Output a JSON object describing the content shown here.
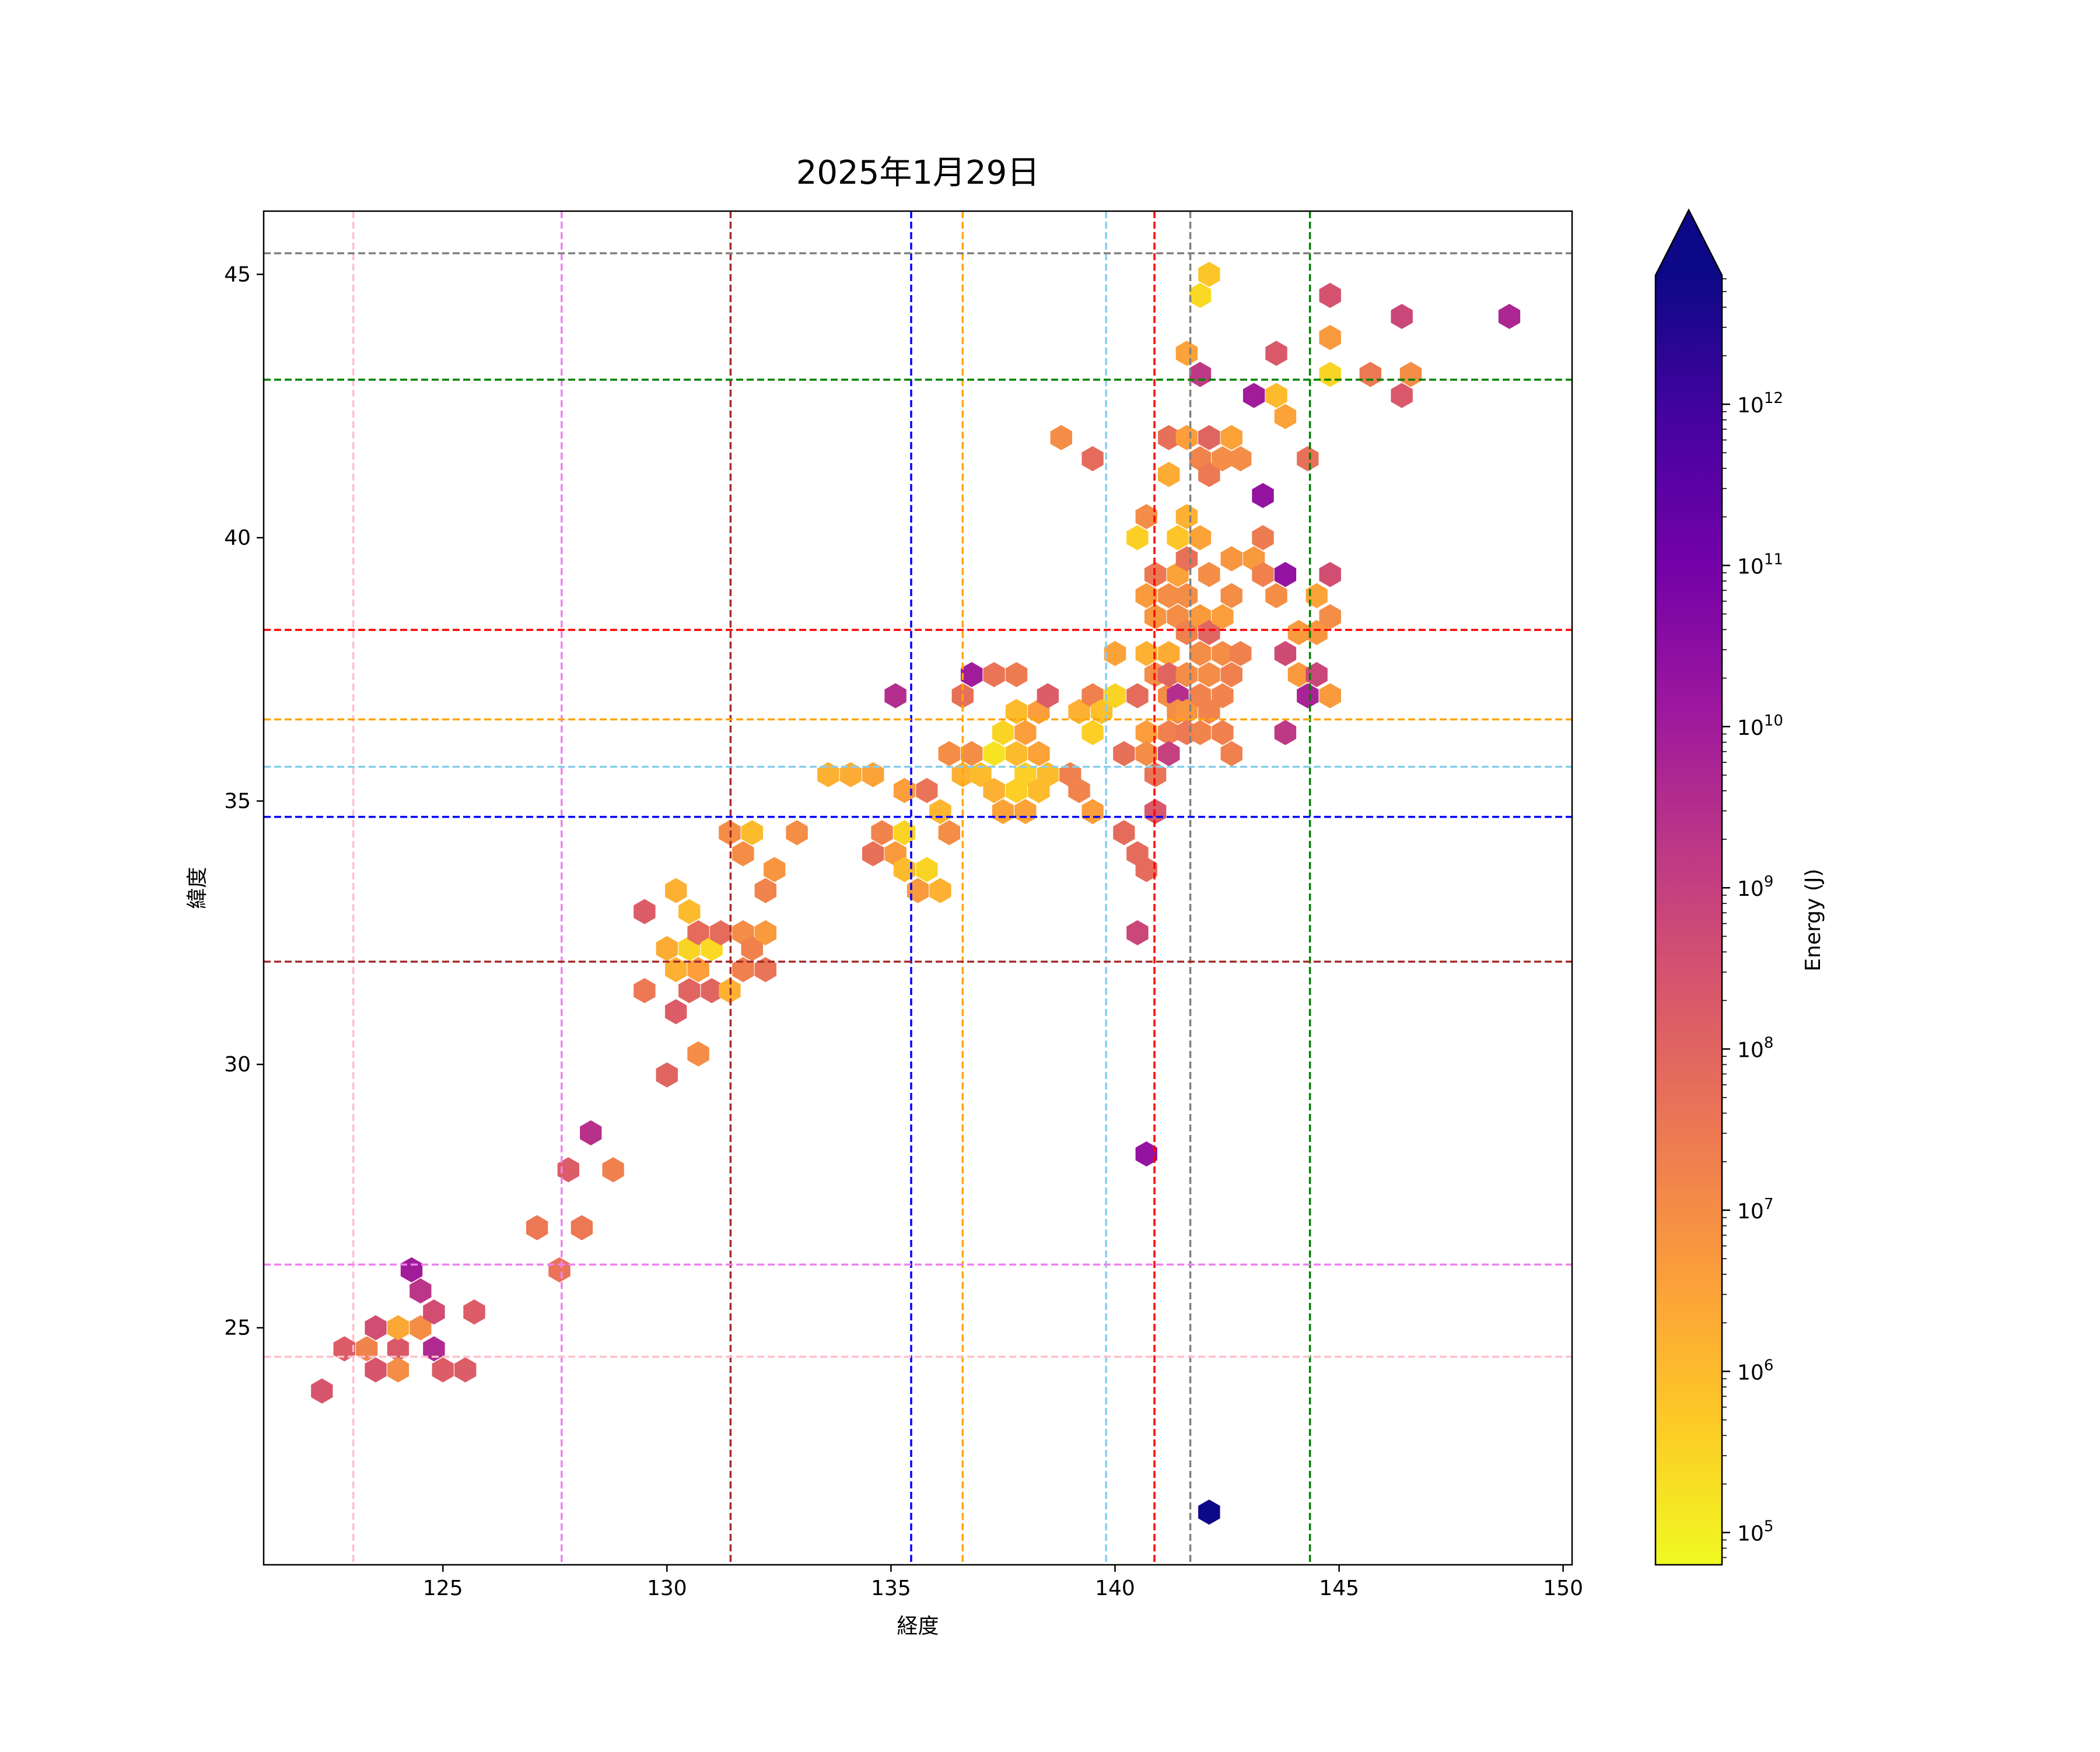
{
  "chart_data": {
    "type": "hexbin",
    "title": "2025年1月29日",
    "xlabel": "経度",
    "ylabel": "緯度",
    "xlim": [
      121,
      150.2
    ],
    "ylim": [
      20.5,
      46.2
    ],
    "x_ticks": [
      125,
      130,
      135,
      140,
      145,
      150
    ],
    "y_ticks": [
      25,
      30,
      35,
      40,
      45
    ],
    "grid": false,
    "colorbar": {
      "label": "Energy (J)",
      "scale": "log",
      "range_exp": [
        4.8,
        12.8
      ],
      "extend": "max",
      "tick_exps": [
        5,
        6,
        7,
        8,
        9,
        10,
        11,
        12
      ],
      "tick_labels": [
        "10",
        "10",
        "10",
        "10",
        "10",
        "10",
        "10",
        "10"
      ],
      "tick_sup": [
        "5",
        "6",
        "7",
        "8",
        "9",
        "10",
        "11",
        "12"
      ],
      "colormap_stops": [
        "#f0f921",
        "#fdca26",
        "#fb9f3a",
        "#ed7953",
        "#d8576b",
        "#bd3786",
        "#9c179e",
        "#7201a8",
        "#46039f",
        "#0d0887"
      ]
    },
    "reference_lines_vertical": [
      {
        "x": 123.0,
        "color": "#ffc0cb"
      },
      {
        "x": 127.65,
        "color": "#ee82ee"
      },
      {
        "x": 131.42,
        "color": "#a52a2a"
      },
      {
        "x": 135.45,
        "color": "#0000ff"
      },
      {
        "x": 136.6,
        "color": "#ffa500"
      },
      {
        "x": 139.8,
        "color": "#87ceeb"
      },
      {
        "x": 140.88,
        "color": "#ff0000"
      },
      {
        "x": 141.68,
        "color": "#808080"
      },
      {
        "x": 144.35,
        "color": "#008000"
      }
    ],
    "reference_lines_horizontal": [
      {
        "y": 45.4,
        "color": "#808080"
      },
      {
        "y": 43.0,
        "color": "#008000"
      },
      {
        "y": 38.25,
        "color": "#ff0000"
      },
      {
        "y": 36.55,
        "color": "#ffa500"
      },
      {
        "y": 35.65,
        "color": "#87ceeb"
      },
      {
        "y": 34.7,
        "color": "#0000ff"
      },
      {
        "y": 31.95,
        "color": "#a52a2a"
      },
      {
        "y": 26.2,
        "color": "#ee82ee"
      },
      {
        "y": 24.45,
        "color": "#ffc0cb"
      }
    ],
    "points": [
      [
        122.3,
        23.8,
        8.4
      ],
      [
        122.8,
        24.6,
        8.2
      ],
      [
        123.3,
        24.6,
        7.2
      ],
      [
        123.5,
        25.0,
        8.6
      ],
      [
        123.5,
        24.2,
        8.4
      ],
      [
        124.0,
        24.6,
        8.3
      ],
      [
        124.0,
        25.0,
        6.4
      ],
      [
        124.0,
        24.2,
        7.0
      ],
      [
        124.3,
        26.1,
        10.0
      ],
      [
        124.5,
        25.7,
        9.3
      ],
      [
        124.5,
        25.0,
        7.0
      ],
      [
        124.8,
        25.3,
        8.6
      ],
      [
        124.8,
        24.6,
        9.6
      ],
      [
        125.0,
        24.2,
        8.2
      ],
      [
        125.5,
        24.2,
        8.2
      ],
      [
        125.7,
        25.3,
        8.2
      ],
      [
        127.1,
        26.9,
        7.5
      ],
      [
        127.6,
        26.1,
        7.6
      ],
      [
        127.8,
        28.0,
        8.2
      ],
      [
        128.1,
        26.9,
        7.5
      ],
      [
        128.3,
        28.7,
        9.4
      ],
      [
        128.8,
        28.0,
        7.3
      ],
      [
        129.5,
        32.9,
        8.2
      ],
      [
        129.5,
        31.4,
        7.5
      ],
      [
        130.0,
        32.2,
        6.3
      ],
      [
        130.0,
        29.8,
        8.0
      ],
      [
        130.2,
        33.3,
        6.2
      ],
      [
        130.2,
        31.8,
        6.2
      ],
      [
        130.2,
        31.0,
        8.2
      ],
      [
        130.5,
        32.9,
        6.0
      ],
      [
        130.5,
        32.2,
        5.5
      ],
      [
        130.5,
        31.4,
        8.0
      ],
      [
        130.7,
        32.5,
        7.8
      ],
      [
        130.7,
        31.8,
        6.6
      ],
      [
        130.7,
        30.2,
        7.0
      ],
      [
        131.0,
        32.2,
        5.4
      ],
      [
        131.0,
        31.4,
        8.0
      ],
      [
        131.2,
        32.5,
        7.8
      ],
      [
        131.4,
        31.4,
        6.2
      ],
      [
        131.4,
        34.4,
        7.0
      ],
      [
        131.7,
        34.0,
        7.0
      ],
      [
        131.7,
        32.5,
        7.0
      ],
      [
        131.7,
        31.8,
        7.3
      ],
      [
        131.9,
        34.4,
        6.0
      ],
      [
        131.9,
        32.2,
        7.3
      ],
      [
        132.2,
        33.3,
        7.2
      ],
      [
        132.2,
        32.5,
        6.7
      ],
      [
        132.2,
        31.8,
        7.6
      ],
      [
        132.4,
        33.7,
        6.8
      ],
      [
        132.9,
        34.4,
        7.0
      ],
      [
        133.6,
        35.5,
        6.2
      ],
      [
        134.1,
        35.5,
        6.3
      ],
      [
        134.6,
        35.5,
        6.5
      ],
      [
        134.6,
        34.0,
        7.7
      ],
      [
        134.8,
        34.4,
        7.2
      ],
      [
        135.1,
        37.0,
        9.5
      ],
      [
        135.1,
        34.0,
        6.7
      ],
      [
        135.3,
        35.2,
        6.6
      ],
      [
        135.3,
        34.4,
        5.5
      ],
      [
        135.3,
        33.7,
        6.0
      ],
      [
        135.6,
        33.3,
        6.7
      ],
      [
        135.8,
        35.2,
        7.6
      ],
      [
        135.8,
        33.7,
        5.5
      ],
      [
        136.1,
        34.8,
        6.1
      ],
      [
        136.1,
        33.3,
        6.2
      ],
      [
        136.3,
        35.9,
        7.0
      ],
      [
        136.3,
        34.4,
        7.0
      ],
      [
        136.6,
        37.0,
        7.7
      ],
      [
        136.6,
        35.5,
        6.2
      ],
      [
        136.8,
        37.4,
        10.0
      ],
      [
        136.8,
        35.9,
        7.0
      ],
      [
        137.0,
        35.5,
        6.0
      ],
      [
        137.3,
        37.4,
        7.6
      ],
      [
        137.3,
        35.9,
        5.2
      ],
      [
        137.3,
        35.2,
        6.2
      ],
      [
        137.5,
        36.3,
        5.5
      ],
      [
        137.5,
        34.8,
        6.5
      ],
      [
        137.8,
        37.4,
        7.4
      ],
      [
        137.8,
        36.7,
        6.0
      ],
      [
        137.8,
        35.9,
        6.0
      ],
      [
        137.8,
        35.2,
        5.6
      ],
      [
        138.0,
        36.3,
        6.6
      ],
      [
        138.0,
        35.5,
        5.6
      ],
      [
        138.0,
        34.8,
        6.5
      ],
      [
        138.3,
        36.7,
        6.6
      ],
      [
        138.3,
        35.9,
        6.5
      ],
      [
        138.3,
        35.2,
        6.0
      ],
      [
        138.5,
        37.0,
        8.2
      ],
      [
        138.5,
        35.5,
        6.0
      ],
      [
        138.8,
        41.9,
        7.0
      ],
      [
        139.0,
        35.5,
        7.3
      ],
      [
        139.2,
        36.7,
        6.2
      ],
      [
        139.2,
        35.2,
        7.2
      ],
      [
        139.5,
        41.5,
        7.8
      ],
      [
        139.5,
        37.0,
        7.3
      ],
      [
        139.5,
        36.3,
        5.6
      ],
      [
        139.5,
        34.8,
        6.6
      ],
      [
        139.7,
        36.7,
        5.9
      ],
      [
        140.0,
        37.8,
        6.5
      ],
      [
        140.0,
        37.0,
        5.5
      ],
      [
        140.2,
        35.9,
        7.7
      ],
      [
        140.2,
        34.4,
        7.8
      ],
      [
        140.5,
        40.0,
        5.6
      ],
      [
        140.5,
        37.0,
        7.8
      ],
      [
        140.5,
        34.0,
        7.8
      ],
      [
        140.5,
        32.5,
        8.8
      ],
      [
        140.7,
        40.4,
        7.0
      ],
      [
        140.7,
        38.9,
        6.7
      ],
      [
        140.7,
        37.8,
        6.2
      ],
      [
        140.7,
        36.3,
        6.6
      ],
      [
        140.7,
        35.9,
        7.0
      ],
      [
        140.7,
        33.7,
        7.8
      ],
      [
        140.7,
        28.3,
        10.3
      ],
      [
        140.9,
        39.3,
        7.5
      ],
      [
        140.9,
        38.5,
        6.8
      ],
      [
        140.9,
        37.4,
        7.0
      ],
      [
        140.9,
        35.5,
        7.6
      ],
      [
        140.9,
        34.8,
        8.3
      ],
      [
        141.2,
        41.9,
        7.7
      ],
      [
        141.2,
        41.2,
        6.3
      ],
      [
        141.2,
        38.9,
        7.0
      ],
      [
        141.2,
        37.8,
        6.3
      ],
      [
        141.2,
        37.0,
        7.0
      ],
      [
        141.2,
        36.3,
        7.3
      ],
      [
        141.2,
        35.9,
        9.0
      ],
      [
        141.2,
        37.4,
        8.0
      ],
      [
        141.4,
        40.0,
        5.8
      ],
      [
        141.4,
        39.3,
        6.5
      ],
      [
        141.4,
        38.5,
        7.0
      ],
      [
        141.4,
        37.0,
        9.5
      ],
      [
        141.4,
        36.7,
        7.0
      ],
      [
        141.6,
        43.5,
        6.5
      ],
      [
        141.6,
        41.9,
        6.6
      ],
      [
        141.6,
        40.4,
        6.2
      ],
      [
        141.6,
        39.6,
        7.7
      ],
      [
        141.6,
        38.9,
        7.0
      ],
      [
        141.6,
        38.2,
        7.3
      ],
      [
        141.6,
        37.4,
        7.0
      ],
      [
        141.6,
        36.7,
        6.8
      ],
      [
        141.6,
        36.3,
        7.5
      ],
      [
        141.9,
        44.6,
        5.4
      ],
      [
        141.9,
        43.1,
        9.2
      ],
      [
        141.9,
        41.5,
        7.2
      ],
      [
        141.9,
        40.0,
        6.5
      ],
      [
        141.9,
        38.5,
        6.7
      ],
      [
        141.9,
        37.8,
        7.0
      ],
      [
        141.9,
        37.0,
        7.2
      ],
      [
        141.9,
        36.3,
        7.2
      ],
      [
        142.1,
        45.0,
        5.8
      ],
      [
        142.1,
        41.9,
        8.0
      ],
      [
        142.1,
        41.2,
        7.5
      ],
      [
        142.1,
        39.3,
        7.0
      ],
      [
        142.1,
        38.2,
        8.0
      ],
      [
        142.1,
        37.4,
        7.0
      ],
      [
        142.1,
        36.7,
        7.2
      ],
      [
        142.1,
        21.5,
        12.8
      ],
      [
        142.4,
        41.5,
        7.0
      ],
      [
        142.4,
        38.5,
        6.6
      ],
      [
        142.4,
        37.8,
        7.0
      ],
      [
        142.4,
        37.0,
        7.2
      ],
      [
        142.4,
        36.3,
        7.3
      ],
      [
        142.6,
        41.9,
        6.5
      ],
      [
        142.6,
        39.6,
        6.8
      ],
      [
        142.6,
        38.9,
        7.0
      ],
      [
        142.6,
        37.4,
        7.3
      ],
      [
        142.6,
        35.9,
        7.3
      ],
      [
        142.8,
        41.5,
        7.0
      ],
      [
        142.8,
        37.8,
        7.3
      ],
      [
        143.1,
        42.7,
        10.0
      ],
      [
        143.1,
        39.6,
        6.7
      ],
      [
        143.3,
        40.8,
        10.3
      ],
      [
        143.3,
        40.0,
        7.4
      ],
      [
        143.3,
        39.3,
        7.3
      ],
      [
        143.6,
        43.5,
        8.3
      ],
      [
        143.6,
        42.7,
        6.0
      ],
      [
        143.6,
        38.9,
        7.0
      ],
      [
        143.8,
        42.3,
        6.5
      ],
      [
        143.8,
        39.3,
        10.3
      ],
      [
        143.8,
        37.8,
        8.7
      ],
      [
        143.8,
        36.3,
        9.2
      ],
      [
        144.1,
        38.2,
        6.7
      ],
      [
        144.1,
        37.4,
        6.7
      ],
      [
        144.3,
        41.5,
        7.7
      ],
      [
        144.3,
        37.0,
        9.8
      ],
      [
        144.5,
        38.9,
        6.5
      ],
      [
        144.5,
        38.2,
        6.8
      ],
      [
        144.5,
        37.4,
        8.8
      ],
      [
        144.8,
        44.6,
        8.5
      ],
      [
        144.8,
        43.8,
        6.7
      ],
      [
        144.8,
        43.1,
        5.5
      ],
      [
        144.8,
        39.3,
        8.6
      ],
      [
        144.8,
        38.5,
        7.0
      ],
      [
        144.8,
        37.0,
        6.7
      ],
      [
        145.7,
        43.1,
        7.5
      ],
      [
        146.4,
        44.2,
        8.8
      ],
      [
        146.4,
        42.7,
        8.3
      ],
      [
        146.6,
        43.1,
        7.0
      ],
      [
        148.8,
        44.2,
        9.7
      ]
    ]
  }
}
